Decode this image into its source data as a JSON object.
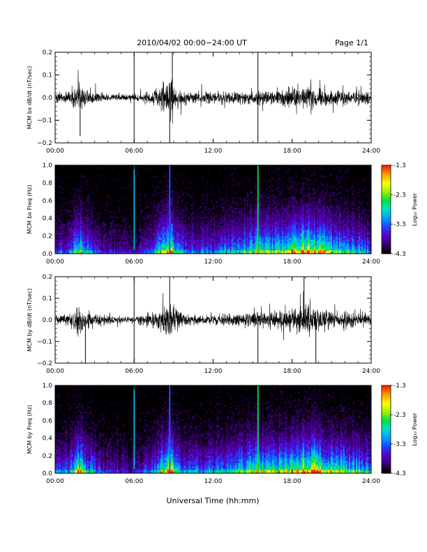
{
  "header": {
    "title": "2010/04/02  00:00−24:00 UT",
    "page": "Page 1/1"
  },
  "xlabel": "Universal Time (hh:mm)",
  "colorbar": {
    "label": "Log₁₀ Power",
    "ticks": [
      "-1.3",
      "-2.3",
      "-3.3",
      "-4.3"
    ],
    "colors": [
      "#000000",
      "#3a0070",
      "#5a00c8",
      "#2040ff",
      "#00a0ff",
      "#00e0c8",
      "#00e040",
      "#a0f000",
      "#ffff00",
      "#ffa000",
      "#ff2000"
    ]
  },
  "chart_data": [
    {
      "type": "line",
      "title": "",
      "xlabel": "",
      "ylabel": "MCM bx dB/dt (nT/sec)",
      "xlim": [
        0,
        24
      ],
      "ylim": [
        -0.2,
        0.2
      ],
      "xticks": [
        "00:00",
        "06:00",
        "12:00",
        "18:00",
        "24:00"
      ],
      "yticks": [
        "0.2",
        "0.1",
        "0.0",
        "−0.1",
        "−0.2"
      ],
      "envelope": [
        {
          "x": 0.0,
          "y": 0.05
        },
        {
          "x": 1.0,
          "y": 0.05
        },
        {
          "x": 1.8,
          "y": 0.14
        },
        {
          "x": 2.3,
          "y": 0.09
        },
        {
          "x": 3.5,
          "y": 0.04
        },
        {
          "x": 5.0,
          "y": 0.03
        },
        {
          "x": 6.0,
          "y": 0.03
        },
        {
          "x": 7.5,
          "y": 0.07
        },
        {
          "x": 8.6,
          "y": 0.19
        },
        {
          "x": 9.3,
          "y": 0.07
        },
        {
          "x": 10.5,
          "y": 0.05
        },
        {
          "x": 12.0,
          "y": 0.05
        },
        {
          "x": 14.0,
          "y": 0.06
        },
        {
          "x": 15.5,
          "y": 0.07
        },
        {
          "x": 16.5,
          "y": 0.08
        },
        {
          "x": 18.0,
          "y": 0.09
        },
        {
          "x": 19.0,
          "y": 0.11
        },
        {
          "x": 20.0,
          "y": 0.1
        },
        {
          "x": 21.0,
          "y": 0.08
        },
        {
          "x": 22.0,
          "y": 0.07
        },
        {
          "x": 24.0,
          "y": 0.06
        }
      ],
      "spikes": [
        {
          "x": 6.0,
          "y": 0.2
        },
        {
          "x": 6.0,
          "y": -0.2
        },
        {
          "x": 15.4,
          "y": 0.2
        },
        {
          "x": 15.4,
          "y": -0.2
        },
        {
          "x": 8.7,
          "y": -0.2
        },
        {
          "x": 8.9,
          "y": 0.2
        },
        {
          "x": 1.9,
          "y": -0.17
        }
      ]
    },
    {
      "type": "heatmap",
      "title": "",
      "xlabel": "",
      "ylabel": "MCM bx Freq (Hz)",
      "xlim": [
        0,
        24
      ],
      "ylim": [
        0,
        1.0
      ],
      "xticks": [
        "00:00",
        "06:00",
        "12:00",
        "18:00",
        "24:00"
      ],
      "yticks": [
        "1.0",
        "0.8",
        "0.6",
        "0.4",
        "0.2",
        "0.0"
      ],
      "z_range": [
        -4.3,
        -1.3
      ],
      "activity": [
        {
          "t": 0.0,
          "a": 0.3
        },
        {
          "t": 1.0,
          "a": 0.35
        },
        {
          "t": 1.8,
          "a": 0.75
        },
        {
          "t": 2.4,
          "a": 0.45
        },
        {
          "t": 3.5,
          "a": 0.25
        },
        {
          "t": 5.0,
          "a": 0.2
        },
        {
          "t": 6.0,
          "a": 0.2
        },
        {
          "t": 7.5,
          "a": 0.35
        },
        {
          "t": 8.7,
          "a": 0.85
        },
        {
          "t": 9.5,
          "a": 0.4
        },
        {
          "t": 11.0,
          "a": 0.35
        },
        {
          "t": 12.5,
          "a": 0.45
        },
        {
          "t": 14.0,
          "a": 0.5
        },
        {
          "t": 15.4,
          "a": 0.65
        },
        {
          "t": 16.5,
          "a": 0.6
        },
        {
          "t": 18.0,
          "a": 0.7
        },
        {
          "t": 19.2,
          "a": 0.85
        },
        {
          "t": 20.5,
          "a": 0.7
        },
        {
          "t": 22.0,
          "a": 0.55
        },
        {
          "t": 24.0,
          "a": 0.4
        }
      ],
      "lines": [
        {
          "t": 6.0,
          "z": -3.0
        },
        {
          "t": 15.4,
          "z": -2.5
        },
        {
          "t": 8.7,
          "z": -3.3
        }
      ]
    },
    {
      "type": "line",
      "title": "",
      "xlabel": "",
      "ylabel": "MCM by dB/dt (nT/sec)",
      "xlim": [
        0,
        24
      ],
      "ylim": [
        -0.2,
        0.2
      ],
      "xticks": [
        "00:00",
        "06:00",
        "12:00",
        "18:00",
        "24:00"
      ],
      "yticks": [
        "0.2",
        "0.1",
        "0.0",
        "−0.1",
        "−0.2"
      ],
      "envelope": [
        {
          "x": 0.0,
          "y": 0.05
        },
        {
          "x": 1.0,
          "y": 0.06
        },
        {
          "x": 1.8,
          "y": 0.17
        },
        {
          "x": 2.4,
          "y": 0.1
        },
        {
          "x": 3.5,
          "y": 0.05
        },
        {
          "x": 5.0,
          "y": 0.04
        },
        {
          "x": 6.0,
          "y": 0.03
        },
        {
          "x": 7.5,
          "y": 0.08
        },
        {
          "x": 8.7,
          "y": 0.2
        },
        {
          "x": 9.5,
          "y": 0.08
        },
        {
          "x": 11.0,
          "y": 0.05
        },
        {
          "x": 12.5,
          "y": 0.06
        },
        {
          "x": 14.0,
          "y": 0.07
        },
        {
          "x": 15.5,
          "y": 0.08
        },
        {
          "x": 16.5,
          "y": 0.09
        },
        {
          "x": 18.0,
          "y": 0.11
        },
        {
          "x": 19.0,
          "y": 0.15
        },
        {
          "x": 20.0,
          "y": 0.13
        },
        {
          "x": 21.0,
          "y": 0.09
        },
        {
          "x": 22.0,
          "y": 0.08
        },
        {
          "x": 24.0,
          "y": 0.06
        }
      ],
      "spikes": [
        {
          "x": 6.0,
          "y": 0.2
        },
        {
          "x": 6.0,
          "y": -0.2
        },
        {
          "x": 15.4,
          "y": -0.2
        },
        {
          "x": 2.3,
          "y": -0.2
        },
        {
          "x": 8.7,
          "y": 0.2
        },
        {
          "x": 19.8,
          "y": -0.2
        },
        {
          "x": 18.9,
          "y": 0.2
        }
      ]
    },
    {
      "type": "heatmap",
      "title": "",
      "xlabel": "",
      "ylabel": "MCM by Freq (Hz)",
      "xlim": [
        0,
        24
      ],
      "ylim": [
        0,
        1.0
      ],
      "xticks": [
        "00:00",
        "06:00",
        "12:00",
        "18:00",
        "24:00"
      ],
      "yticks": [
        "1.0",
        "0.8",
        "0.6",
        "0.4",
        "0.2",
        "0.0"
      ],
      "z_range": [
        -4.3,
        -1.3
      ],
      "activity": [
        {
          "t": 0.0,
          "a": 0.35
        },
        {
          "t": 1.0,
          "a": 0.4
        },
        {
          "t": 1.8,
          "a": 0.8
        },
        {
          "t": 2.4,
          "a": 0.5
        },
        {
          "t": 3.5,
          "a": 0.3
        },
        {
          "t": 5.0,
          "a": 0.25
        },
        {
          "t": 6.0,
          "a": 0.2
        },
        {
          "t": 7.5,
          "a": 0.4
        },
        {
          "t": 8.7,
          "a": 0.9
        },
        {
          "t": 9.5,
          "a": 0.45
        },
        {
          "t": 11.0,
          "a": 0.4
        },
        {
          "t": 12.5,
          "a": 0.5
        },
        {
          "t": 14.0,
          "a": 0.55
        },
        {
          "t": 15.4,
          "a": 0.7
        },
        {
          "t": 16.5,
          "a": 0.65
        },
        {
          "t": 18.0,
          "a": 0.75
        },
        {
          "t": 19.2,
          "a": 0.95
        },
        {
          "t": 20.5,
          "a": 0.75
        },
        {
          "t": 22.0,
          "a": 0.6
        },
        {
          "t": 24.0,
          "a": 0.45
        }
      ],
      "lines": [
        {
          "t": 6.0,
          "z": -3.0
        },
        {
          "t": 15.4,
          "z": -2.5
        },
        {
          "t": 8.7,
          "z": -3.3
        }
      ]
    }
  ]
}
